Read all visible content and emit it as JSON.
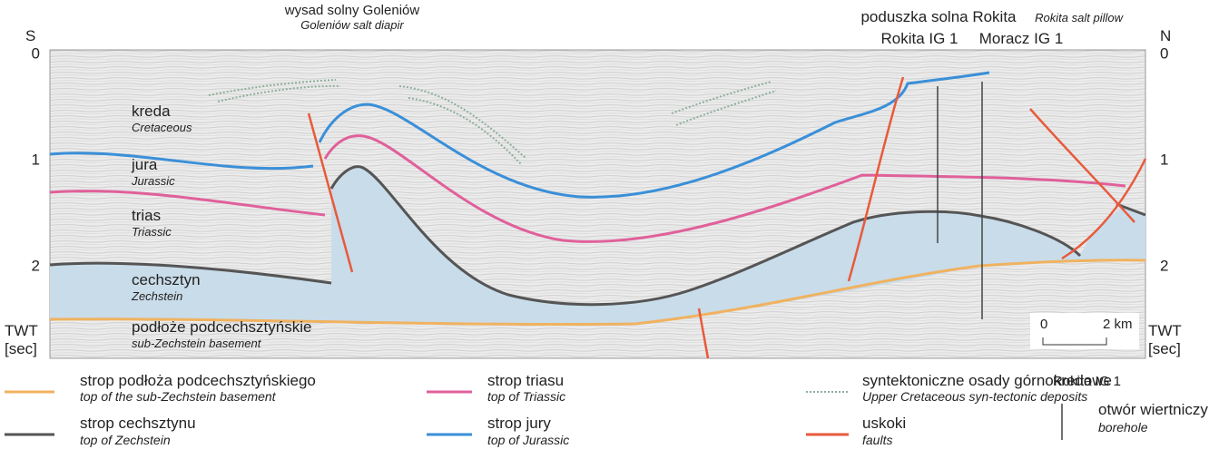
{
  "header": {
    "left": "S",
    "right": "N"
  },
  "annotations": {
    "diapir_pl": "wysad solny Goleniów",
    "diapir_en": "Goleniów salt diapir",
    "pillow_pl": "poduszka solna Rokita",
    "pillow_en": "Rokita salt pillow",
    "well_1": "Rokita IG 1",
    "well_2": "Moracz IG 1"
  },
  "axis": {
    "ticks": [
      0,
      1,
      2
    ],
    "unit_name": "TWT",
    "unit": "[sec]"
  },
  "layers": [
    {
      "pl": "kreda",
      "en": "Cretaceous"
    },
    {
      "pl": "jura",
      "en": "Jurassic"
    },
    {
      "pl": "trias",
      "en": "Triassic"
    },
    {
      "pl": "cechsztyn",
      "en": "Zechstein"
    },
    {
      "pl": "podłoże podcechsztyńskie",
      "en": "sub-Zechstein basement"
    }
  ],
  "scale_bar": {
    "start": "0",
    "end": "2 km"
  },
  "legend": [
    {
      "pl": "strop podłoża podcechsztyńskiego",
      "en": "top of the sub-Zechstein basement"
    },
    {
      "pl": "strop cechsztynu",
      "en": "top of Zechstein"
    },
    {
      "pl": "strop triasu",
      "en": "top of Triassic"
    },
    {
      "pl": "strop jury",
      "en": "top of Jurassic"
    },
    {
      "pl": "syntektoniczne osady górnokredowe",
      "en": "Upper Cretaceous syn-tectonic deposits"
    },
    {
      "pl": "uskoki",
      "en": "faults"
    },
    {
      "example": "Rokita IG 1",
      "pl": "otwór wiertniczy",
      "en": "borehole"
    }
  ]
}
